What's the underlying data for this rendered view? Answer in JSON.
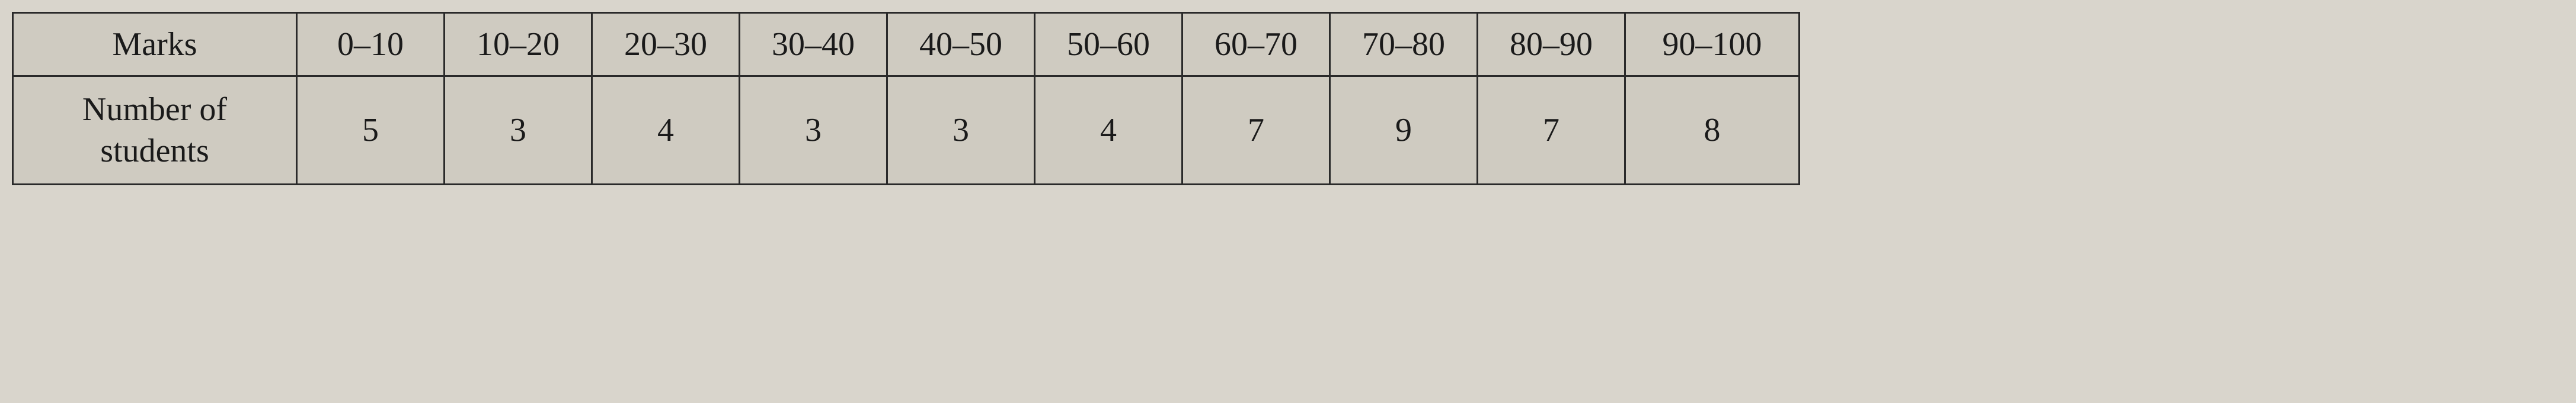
{
  "table": {
    "columns": [
      "Marks",
      "0–10",
      "10–20",
      "20–30",
      "30–40",
      "40–50",
      "50–60",
      "60–70",
      "70–80",
      "80–90",
      "90–100"
    ],
    "rowHeader": "Number of students",
    "rows": [
      [
        "5",
        "3",
        "4",
        "3",
        "3",
        "4",
        "7",
        "9",
        "7",
        "8"
      ]
    ],
    "border_color": "#2a2a2a",
    "background_color": "#cfcbc1",
    "text_color": "#1a1a1a",
    "font_size_header": 56,
    "font_size_data": 56,
    "header_col_width": 440,
    "data_col_width": 230,
    "wide_col_width": 275,
    "border_width": 3
  }
}
